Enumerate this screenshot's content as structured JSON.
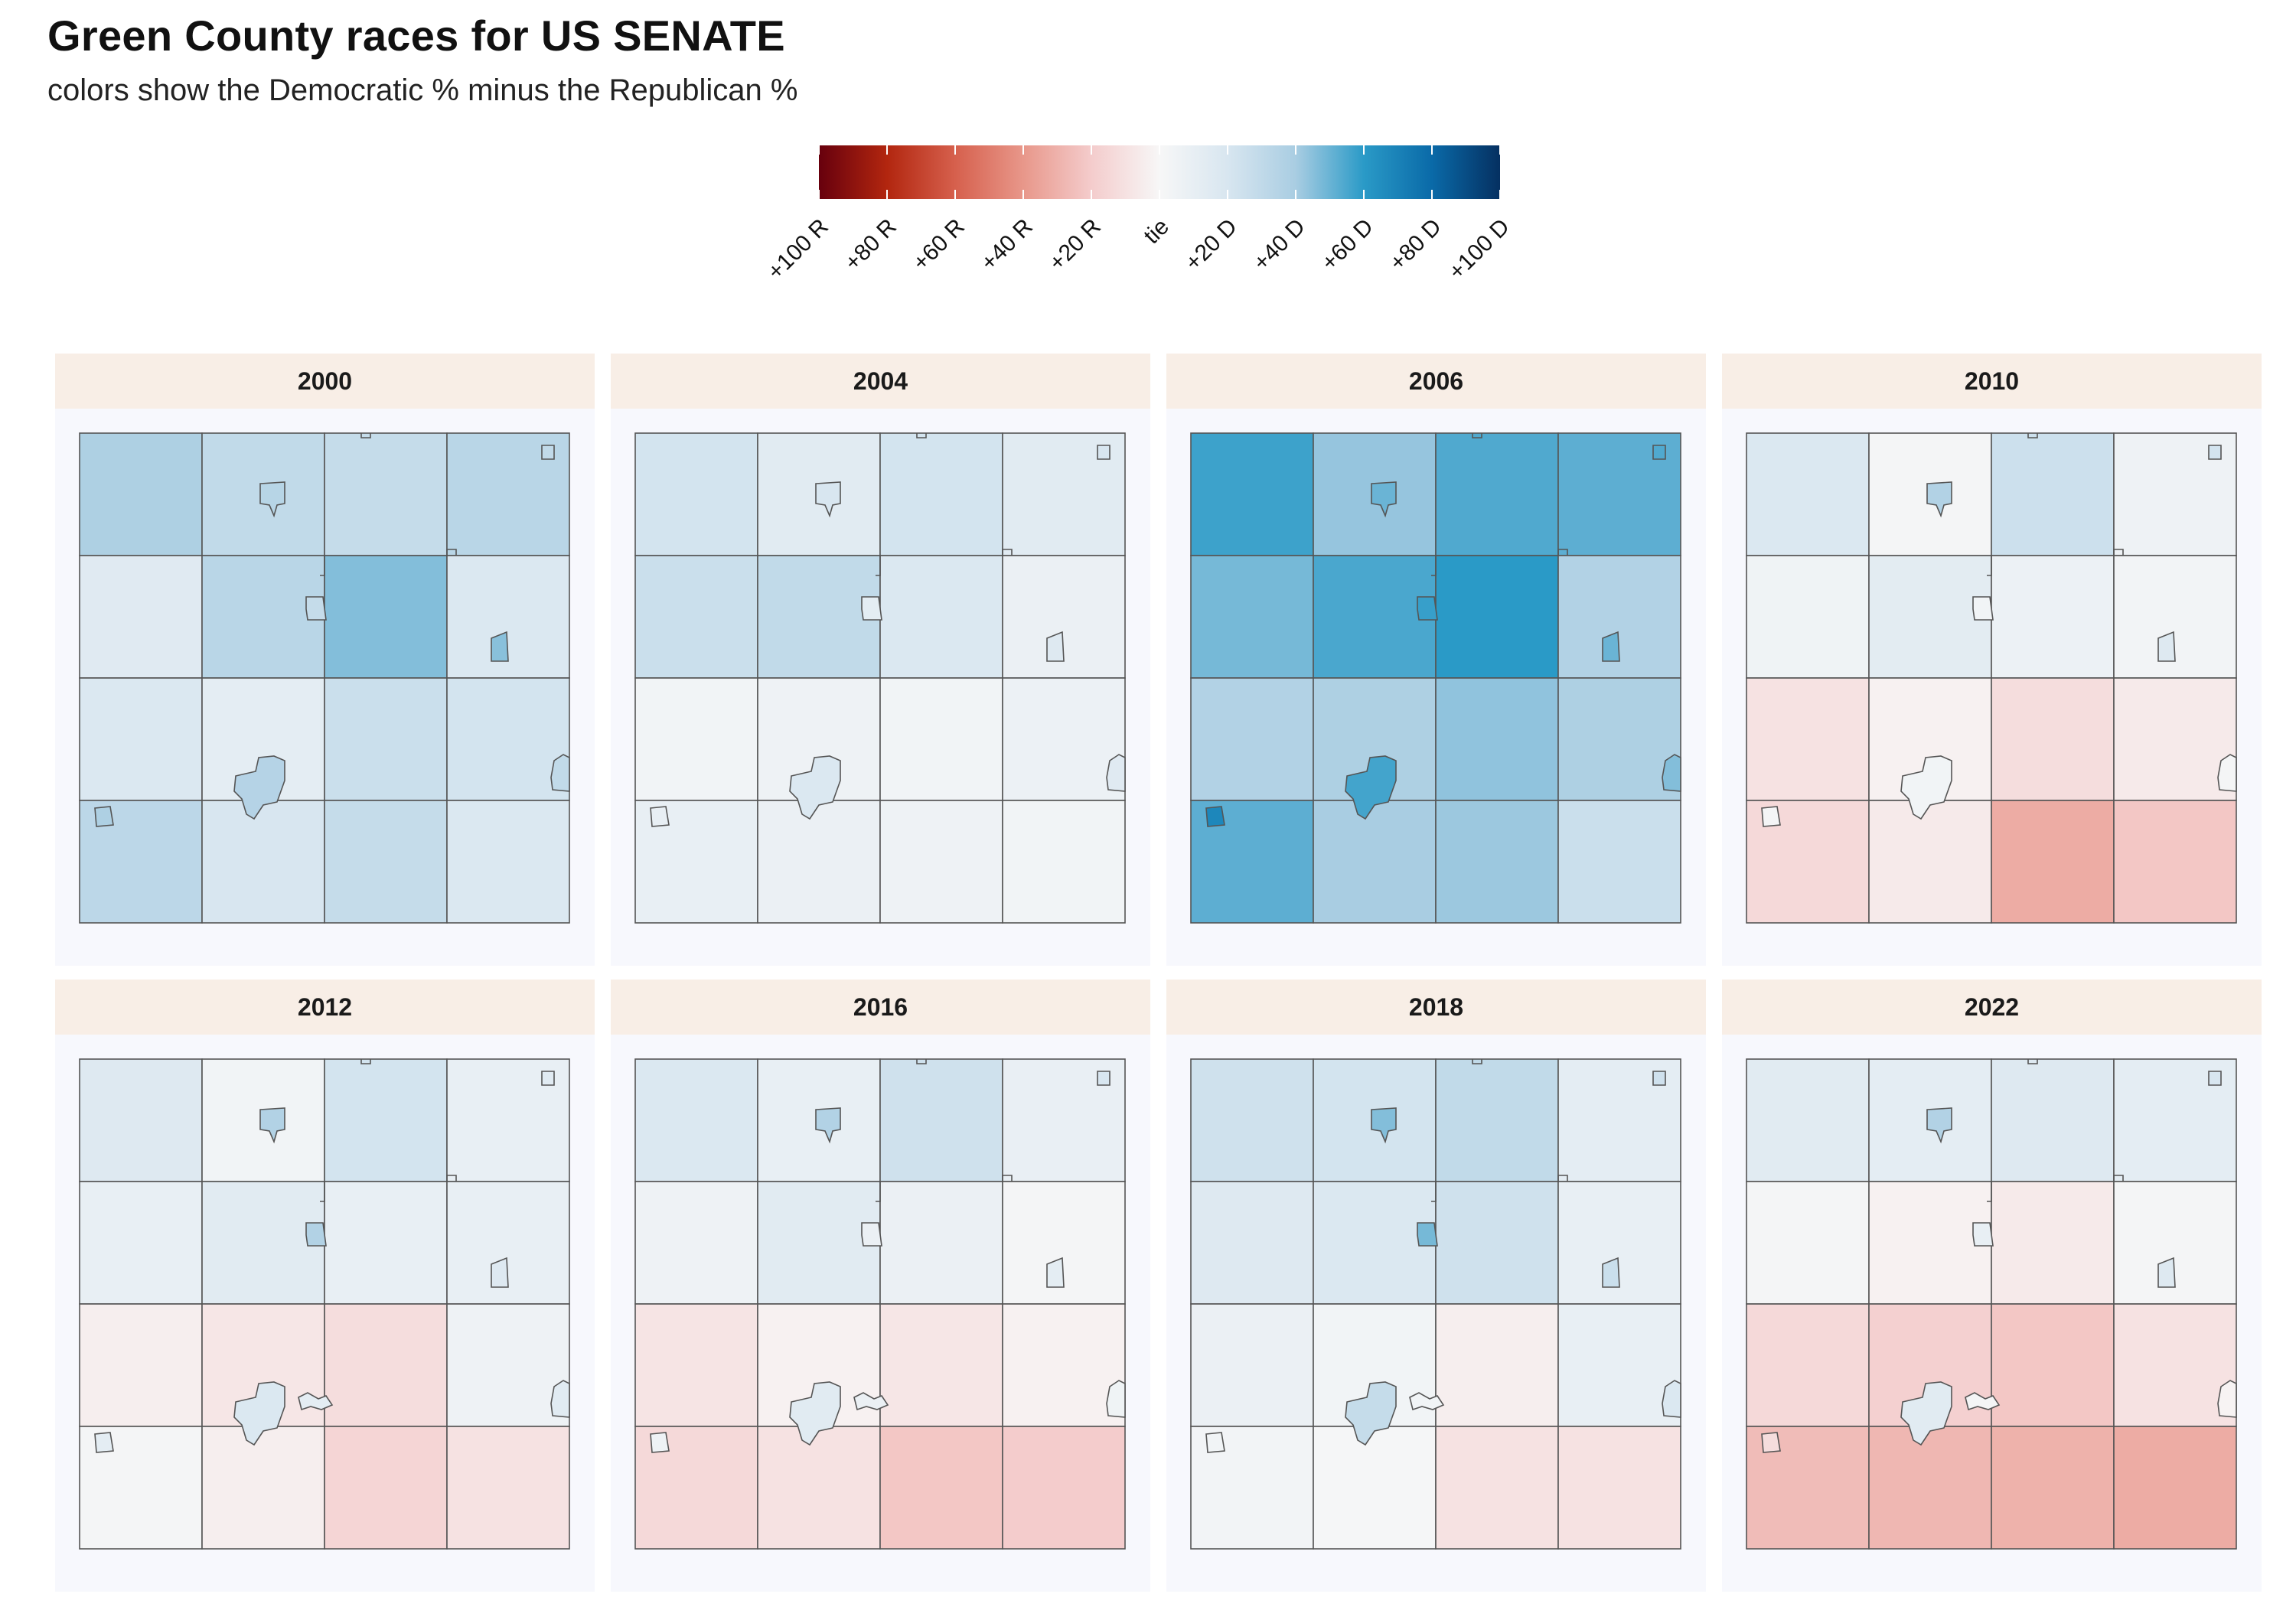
{
  "title": "Green County races for US SENATE",
  "subtitle": "colors show the Democratic % minus the Republican %",
  "legend": {
    "min": -100,
    "max": 100,
    "stops": [
      {
        "v": -100,
        "c": "#67000d"
      },
      {
        "v": -80,
        "c": "#b2260f"
      },
      {
        "v": -60,
        "c": "#d6604d"
      },
      {
        "v": -40,
        "c": "#e8978a"
      },
      {
        "v": -20,
        "c": "#f4cccc"
      },
      {
        "v": 0,
        "c": "#f7f7f7"
      },
      {
        "v": 20,
        "c": "#d8e6f0"
      },
      {
        "v": 40,
        "c": "#a9cde2"
      },
      {
        "v": 60,
        "c": "#2a9ac7"
      },
      {
        "v": 80,
        "c": "#0a6aa8"
      },
      {
        "v": 100,
        "c": "#053061"
      }
    ],
    "ticks": [
      {
        "value": -100,
        "label": "+100 R"
      },
      {
        "value": -80,
        "label": "+80 R"
      },
      {
        "value": -60,
        "label": "+60 R"
      },
      {
        "value": -40,
        "label": "+40 R"
      },
      {
        "value": -20,
        "label": "+20 R"
      },
      {
        "value": 0,
        "label": "tie"
      },
      {
        "value": 20,
        "label": "+20 D"
      },
      {
        "value": 40,
        "label": "+40 D"
      },
      {
        "value": 60,
        "label": "+60 D"
      },
      {
        "value": 80,
        "label": "+80 D"
      },
      {
        "value": 100,
        "label": "+100 D"
      }
    ]
  },
  "facets": [
    {
      "year": "2000",
      "towns": [
        [
          38,
          30,
          28,
          33
        ],
        [
          15,
          33,
          46,
          18
        ],
        [
          18,
          12,
          26,
          22
        ],
        [
          32,
          20,
          28,
          18
        ]
      ],
      "cities": {
        "n": 34,
        "ne": 30,
        "e": 28,
        "se": 45,
        "c": 35,
        "w": 38
      }
    },
    {
      "year": "2004",
      "towns": [
        [
          22,
          14,
          22,
          14
        ],
        [
          26,
          30,
          18,
          8
        ],
        [
          4,
          6,
          4,
          7
        ],
        [
          10,
          8,
          6,
          4
        ]
      ],
      "cities": {
        "n": 20,
        "ne": 20,
        "e": 12,
        "se": 16,
        "c": 18,
        "w": 10
      }
    },
    {
      "year": "2006",
      "towns": [
        [
          57,
          43,
          54,
          52
        ],
        [
          48,
          55,
          60,
          36
        ],
        [
          36,
          38,
          44,
          38
        ],
        [
          52,
          40,
          42,
          26
        ]
      ],
      "cities": {
        "n": 50,
        "ne": 54,
        "e": 58,
        "se": 50,
        "c": 56,
        "w": 68
      }
    },
    {
      "year": "2010",
      "towns": [
        [
          18,
          2,
          25,
          6
        ],
        [
          5,
          13,
          7,
          3
        ],
        [
          -10,
          -3,
          -12,
          -6
        ],
        [
          -14,
          -6,
          -32,
          -22
        ]
      ],
      "cities": {
        "n": 36,
        "ne": 22,
        "e": 4,
        "se": 16,
        "c": 4,
        "w": 2
      }
    },
    {
      "year": "2012",
      "towns": [
        [
          16,
          4,
          22,
          10
        ],
        [
          10,
          14,
          10,
          10
        ],
        [
          -4,
          -8,
          -12,
          6
        ],
        [
          2,
          -4,
          -16,
          -10
        ]
      ],
      "cities": {
        "n": 36,
        "ne": 14,
        "e": 36,
        "se": 16,
        "c": 18,
        "w": 12,
        "sc": 12
      }
    },
    {
      "year": "2016",
      "towns": [
        [
          18,
          10,
          24,
          9
        ],
        [
          6,
          14,
          8,
          2
        ],
        [
          -9,
          -3,
          -8,
          -3
        ],
        [
          -14,
          -10,
          -22,
          -20
        ]
      ],
      "cities": {
        "n": 36,
        "ne": 20,
        "e": 8,
        "se": 12,
        "c": 14,
        "w": 6,
        "sc": 8
      }
    },
    {
      "year": "2018",
      "towns": [
        [
          24,
          22,
          30,
          12
        ],
        [
          16,
          18,
          24,
          10
        ],
        [
          8,
          4,
          -4,
          10
        ],
        [
          3,
          1,
          -10,
          -10
        ]
      ],
      "cities": {
        "n": 46,
        "ne": 24,
        "e": 48,
        "se": 26,
        "c": 28,
        "w": 4,
        "sc": 4
      }
    },
    {
      "year": "2022",
      "towns": [
        [
          14,
          12,
          16,
          12
        ],
        [
          2,
          -3,
          -6,
          2
        ],
        [
          -14,
          -18,
          -22,
          -10
        ],
        [
          -26,
          -28,
          -30,
          -32
        ]
      ],
      "cities": {
        "n": 36,
        "ne": 20,
        "e": 10,
        "se": 16,
        "c": 14,
        "w": -12,
        "sc": 2
      }
    }
  ]
}
